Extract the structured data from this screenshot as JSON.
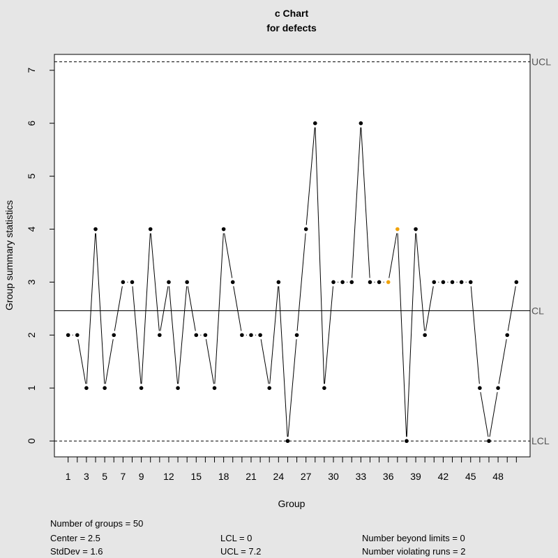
{
  "chart_data": {
    "type": "line",
    "title": "c Chart",
    "subtitle": "for defects",
    "xlabel": "Group",
    "ylabel": "Group summary statistics",
    "x": [
      1,
      2,
      3,
      4,
      5,
      6,
      7,
      8,
      9,
      10,
      11,
      12,
      13,
      14,
      15,
      16,
      17,
      18,
      19,
      20,
      21,
      22,
      23,
      24,
      25,
      26,
      27,
      28,
      29,
      30,
      31,
      32,
      33,
      34,
      35,
      36,
      37,
      38,
      39,
      40,
      41,
      42,
      43,
      44,
      45,
      46,
      47,
      48,
      49,
      50
    ],
    "values": [
      2,
      2,
      1,
      4,
      1,
      2,
      3,
      3,
      1,
      4,
      2,
      3,
      1,
      3,
      2,
      2,
      1,
      4,
      3,
      2,
      2,
      2,
      1,
      3,
      0,
      2,
      4,
      6,
      1,
      3,
      3,
      3,
      6,
      3,
      3,
      3,
      4,
      0,
      4,
      2,
      3,
      3,
      3,
      3,
      3,
      1,
      0,
      1,
      2,
      3
    ],
    "x_ticks": [
      1,
      3,
      5,
      7,
      9,
      12,
      15,
      18,
      21,
      24,
      27,
      30,
      33,
      36,
      39,
      42,
      45,
      48
    ],
    "y_ticks": [
      0,
      1,
      2,
      3,
      4,
      5,
      6,
      7
    ],
    "ylim": [
      -0.3,
      7.3
    ],
    "xlim": [
      -0.5,
      51.5
    ],
    "center_line": 2.46,
    "ucl": 7.16,
    "lcl": 0,
    "limit_labels": {
      "ucl": "UCL",
      "cl": "CL",
      "lcl": "LCL"
    },
    "highlighted_points": [
      {
        "x": 36,
        "value": 3,
        "color": "#f0a30a"
      },
      {
        "x": 37,
        "value": 4,
        "color": "#f0a30a"
      }
    ],
    "grid": false,
    "point_color": "#000000",
    "highlight_color": "#f0a30a"
  },
  "stats": {
    "groups": "Number of groups = 50",
    "center": "Center = 2.5",
    "stddev": "StdDev = 1.6",
    "lcl": "LCL = 0",
    "ucl": "UCL = 7.2",
    "beyond_limits": "Number beyond limits = 0",
    "violating_runs": "Number violating runs = 2"
  }
}
